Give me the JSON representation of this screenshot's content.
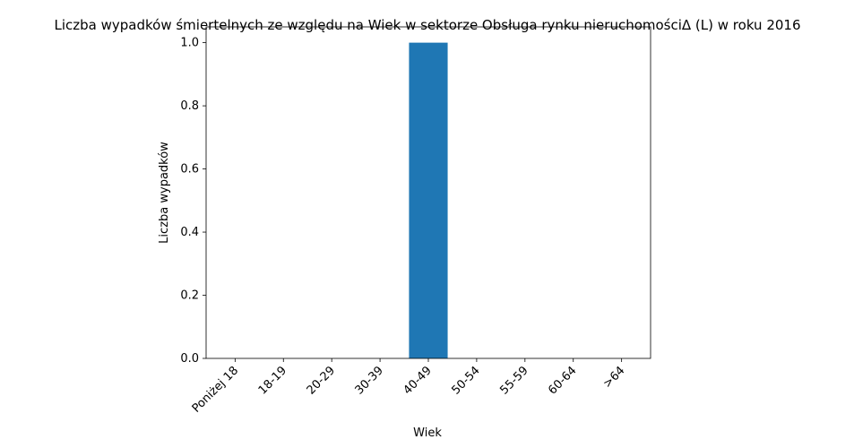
{
  "chart_data": {
    "type": "bar",
    "title": "Liczba wypadków śmiertelnych ze względu na Wiek w sektorze Obsługa rynku nieruchomościΔ  (L) w roku 2016",
    "xlabel": "Wiek",
    "ylabel": "Liczba wypadków",
    "categories": [
      "Poniżej 18",
      "18-19",
      "20-29",
      "30-39",
      "40-49",
      "50-54",
      "55-59",
      "60-64",
      ">64"
    ],
    "values": [
      0,
      0,
      0,
      0,
      1,
      0,
      0,
      0,
      0
    ],
    "ylim": [
      0,
      1.05
    ],
    "yticks": [
      0.0,
      0.2,
      0.4,
      0.6,
      0.8,
      1.0
    ],
    "ytick_labels": [
      "0.0",
      "0.2",
      "0.4",
      "0.6",
      "0.8",
      "1.0"
    ],
    "grid": false,
    "bar_color": "#1f77b4"
  }
}
